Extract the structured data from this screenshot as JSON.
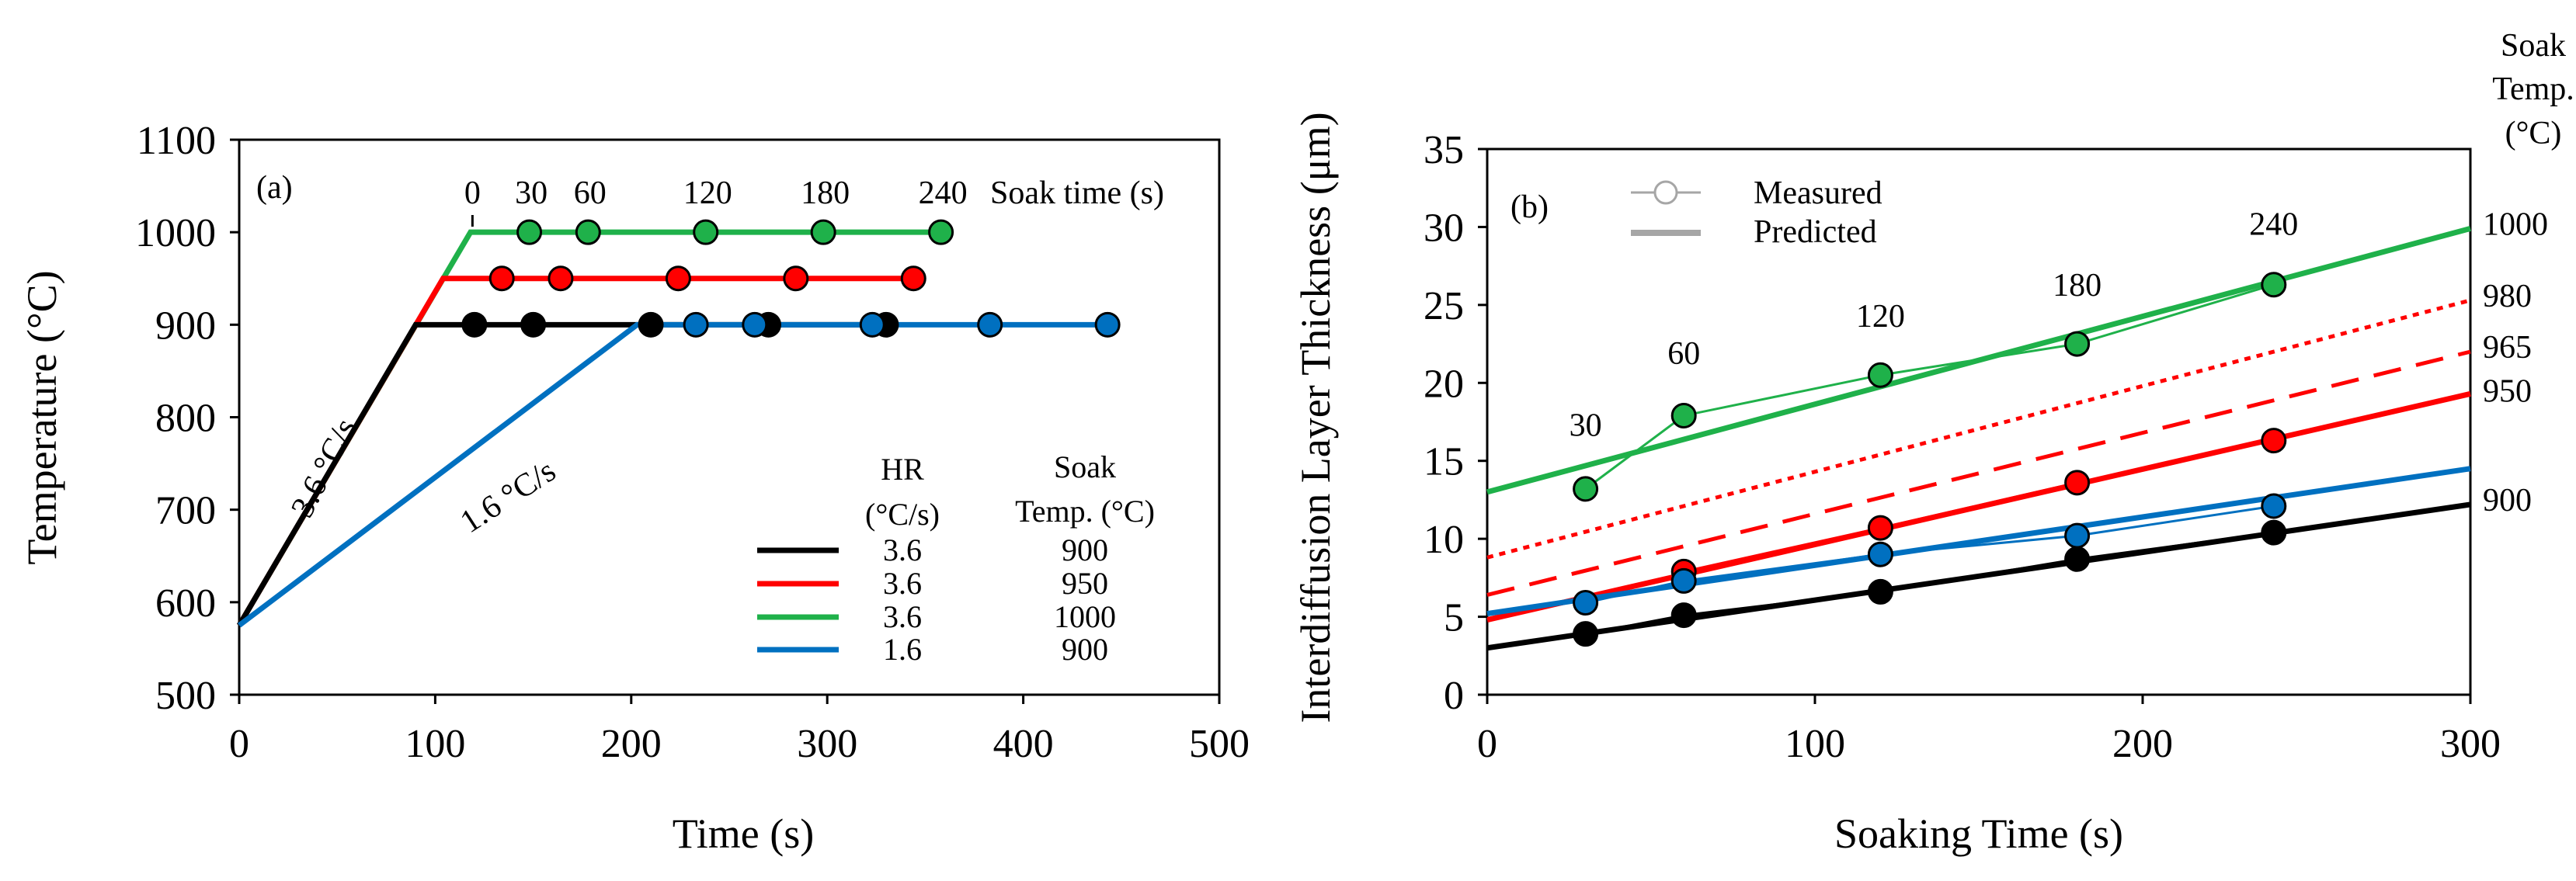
{
  "chart_data": [
    {
      "id": "a",
      "type": "line",
      "panel_label": "(a)",
      "xlabel": "Time (s)",
      "ylabel": "Temperature (°C)",
      "xlim": [
        0,
        500
      ],
      "ylim": [
        500,
        1100
      ],
      "xticks": [
        0,
        100,
        200,
        300,
        400,
        500
      ],
      "yticks": [
        500,
        600,
        700,
        800,
        900,
        1000,
        1100
      ],
      "soak_time_header": "Soak time (s)",
      "soak_time_labels": [
        {
          "text": "0",
          "x": 119
        },
        {
          "text": "30",
          "x": 149
        },
        {
          "text": "60",
          "x": 179
        },
        {
          "text": "120",
          "x": 239
        },
        {
          "text": "180",
          "x": 299
        },
        {
          "text": "240",
          "x": 359
        }
      ],
      "rate_annotations": [
        {
          "text": "3.6 °C/s",
          "x": 48,
          "y": 740,
          "angle": -63
        },
        {
          "text": "1.6 °C/s",
          "x": 140,
          "y": 705,
          "angle": -33
        }
      ],
      "table": {
        "headers": [
          "HR (°C/s)",
          "Soak Temp. (°C)"
        ],
        "header_lines": [
          [
            "HR",
            "(°C/s)"
          ],
          [
            "Soak",
            "Temp. (°C)"
          ]
        ],
        "rows": [
          {
            "hr": "3.6",
            "temp": "900",
            "color": "#000000"
          },
          {
            "hr": "3.6",
            "temp": "950",
            "color": "#ff0000"
          },
          {
            "hr": "3.6",
            "temp": "1000",
            "color": "#1fb14a"
          },
          {
            "hr": "1.6",
            "temp": "900",
            "color": "#0070c0"
          }
        ]
      },
      "series": [
        {
          "name": "3.6 °C/s, 900 °C",
          "color": "#000000",
          "line": [
            [
              0,
              575
            ],
            [
              90,
              900
            ],
            [
              330,
              900
            ]
          ],
          "points": [
            [
              120,
              900
            ],
            [
              150,
              900
            ],
            [
              210,
              900
            ],
            [
              270,
              900
            ],
            [
              330,
              900
            ]
          ]
        },
        {
          "name": "3.6 °C/s, 950 °C",
          "color": "#ff0000",
          "line": [
            [
              0,
              575
            ],
            [
              104,
              950
            ],
            [
              344,
              950
            ]
          ],
          "points": [
            [
              134,
              950
            ],
            [
              164,
              950
            ],
            [
              224,
              950
            ],
            [
              284,
              950
            ],
            [
              344,
              950
            ]
          ]
        },
        {
          "name": "3.6 °C/s, 1000 °C",
          "color": "#1fb14a",
          "line": [
            [
              0,
              575
            ],
            [
              118,
              1000
            ],
            [
              358,
              1000
            ]
          ],
          "points": [
            [
              148,
              1000
            ],
            [
              178,
              1000
            ],
            [
              238,
              1000
            ],
            [
              298,
              1000
            ],
            [
              358,
              1000
            ]
          ]
        },
        {
          "name": "1.6 °C/s, 900 °C",
          "color": "#0070c0",
          "line": [
            [
              0,
              575
            ],
            [
              203,
              900
            ],
            [
              443,
              900
            ]
          ],
          "points": [
            [
              233,
              900
            ],
            [
              263,
              900
            ],
            [
              323,
              900
            ],
            [
              383,
              900
            ],
            [
              443,
              900
            ]
          ]
        }
      ]
    },
    {
      "id": "b",
      "type": "line",
      "panel_label": "(b)",
      "xlabel": "Soaking Time (s)",
      "ylabel": "Interdiffusion Layer Thickness (μm)",
      "xlim": [
        0,
        300
      ],
      "ylim": [
        0,
        35
      ],
      "xticks": [
        0,
        100,
        200,
        300
      ],
      "yticks": [
        0,
        5,
        10,
        15,
        20,
        25,
        30,
        35
      ],
      "legend": {
        "measured": "Measured",
        "predicted": "Predicted",
        "position": "top-left"
      },
      "right_title_lines": [
        "Soak",
        "Temp.",
        "(°C)"
      ],
      "right_labels": [
        {
          "text": "1000",
          "y": 30.2
        },
        {
          "text": "980",
          "y": 25.6
        },
        {
          "text": "965",
          "y": 22.3
        },
        {
          "text": "950",
          "y": 19.5
        },
        {
          "text": "900",
          "y": 12.5
        }
      ],
      "point_labels": [
        {
          "text": "30",
          "x": 30,
          "y": 16.6
        },
        {
          "text": "60",
          "x": 60,
          "y": 21.2
        },
        {
          "text": "120",
          "x": 120,
          "y": 23.6
        },
        {
          "text": "180",
          "x": 180,
          "y": 25.6
        },
        {
          "text": "240",
          "x": 240,
          "y": 29.5
        }
      ],
      "predicted": [
        {
          "temp": "1000",
          "color": "#1fb14a",
          "style": "solid",
          "x": [
            0,
            300
          ],
          "y": [
            13.0,
            29.9
          ]
        },
        {
          "temp": "980",
          "color": "#ff0000",
          "style": "dotted",
          "x": [
            0,
            300
          ],
          "y": [
            8.8,
            25.3
          ]
        },
        {
          "temp": "965",
          "color": "#ff0000",
          "style": "dashed",
          "x": [
            0,
            300
          ],
          "y": [
            6.4,
            22.0
          ]
        },
        {
          "temp": "950",
          "color": "#ff0000",
          "style": "solid",
          "x": [
            0,
            300
          ],
          "y": [
            4.8,
            19.3
          ]
        },
        {
          "temp": "900",
          "color": "#000000",
          "style": "solid",
          "x": [
            0,
            300
          ],
          "y": [
            3.0,
            12.2
          ]
        },
        {
          "temp": "900 (1.6 °C/s)",
          "color": "#0070c0",
          "style": "solid",
          "x": [
            0,
            300
          ],
          "y": [
            5.2,
            14.5
          ]
        }
      ],
      "measured": [
        {
          "name": "1000 °C",
          "color": "#1fb14a",
          "x": [
            30,
            60,
            120,
            180,
            240
          ],
          "y": [
            13.2,
            17.9,
            20.5,
            22.5,
            26.3
          ]
        },
        {
          "name": "950 °C",
          "color": "#ff0000",
          "x": [
            60,
            120,
            180,
            240
          ],
          "y": [
            7.9,
            10.7,
            13.6,
            16.3
          ]
        },
        {
          "name": "900 °C (1.6 °C/s)",
          "color": "#0070c0",
          "x": [
            30,
            60,
            120,
            180,
            240
          ],
          "y": [
            5.9,
            7.3,
            9.0,
            10.2,
            12.1
          ]
        },
        {
          "name": "900 °C",
          "color": "#000000",
          "x": [
            30,
            60,
            120,
            180,
            240
          ],
          "y": [
            3.9,
            5.1,
            6.6,
            8.7,
            10.4
          ]
        }
      ]
    }
  ]
}
